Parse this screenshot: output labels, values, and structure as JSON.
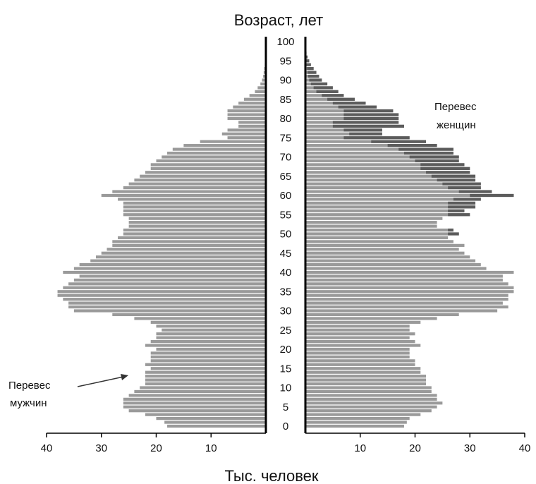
{
  "chart_data": {
    "type": "bar",
    "title": "Возраст, лет",
    "xlabel": "Тыс. человек",
    "ylabel": "",
    "age_ticks": [
      "0",
      "5",
      "10",
      "15",
      "20",
      "25",
      "30",
      "35",
      "40",
      "45",
      "50",
      "55",
      "60",
      "65",
      "70",
      "75",
      "80",
      "85",
      "90",
      "95",
      "100"
    ],
    "x_ticks_left": [
      "40",
      "30",
      "20",
      "10"
    ],
    "x_ticks_right": [
      "10",
      "20",
      "30",
      "40"
    ],
    "xlim": [
      0,
      40
    ],
    "ages": [
      0,
      1,
      2,
      3,
      4,
      5,
      6,
      7,
      8,
      9,
      10,
      11,
      12,
      13,
      14,
      15,
      16,
      17,
      18,
      19,
      20,
      21,
      22,
      23,
      24,
      25,
      26,
      27,
      28,
      29,
      30,
      31,
      32,
      33,
      34,
      35,
      36,
      37,
      38,
      39,
      40,
      41,
      42,
      43,
      44,
      45,
      46,
      47,
      48,
      49,
      50,
      51,
      52,
      53,
      54,
      55,
      56,
      57,
      58,
      59,
      60,
      61,
      62,
      63,
      64,
      65,
      66,
      67,
      68,
      69,
      70,
      71,
      72,
      73,
      74,
      75,
      76,
      77,
      78,
      79,
      80,
      81,
      82,
      83,
      84,
      85,
      86,
      87,
      88,
      89,
      90,
      91,
      92,
      93,
      94,
      95,
      96,
      97,
      98,
      99,
      100
    ],
    "series": [
      {
        "side": "left",
        "values": [
          18,
          18.5,
          20,
          22,
          25,
          26,
          26,
          26,
          25,
          24,
          23,
          22,
          22,
          22,
          22,
          21,
          22,
          21,
          21,
          21,
          20,
          22,
          21,
          20,
          20,
          19,
          20,
          21,
          24,
          28,
          35,
          36,
          36,
          37,
          38,
          38,
          37,
          36,
          35,
          34,
          37,
          35,
          34,
          32,
          31,
          30,
          29,
          28,
          28,
          27,
          26,
          26,
          25,
          25,
          25,
          26,
          26,
          26,
          26,
          27,
          30,
          28,
          26,
          25,
          24,
          23,
          22,
          21,
          21,
          20,
          19,
          18,
          17,
          15,
          12,
          7,
          8,
          7,
          5,
          5,
          7,
          7,
          7,
          6,
          5,
          4,
          3,
          2,
          1.5,
          1,
          0.7,
          0.5,
          0.4,
          0.3,
          0.2,
          0.15,
          0.1,
          0.05,
          0.05,
          0.03,
          0.02
        ]
      },
      {
        "side": "right",
        "values": [
          18,
          18.5,
          19,
          21,
          23,
          24,
          25,
          24,
          24,
          23,
          23,
          22,
          22,
          22,
          21,
          21,
          20,
          20,
          19,
          19,
          19,
          21,
          20,
          19,
          20,
          19,
          19,
          21,
          24,
          28,
          35,
          37,
          36,
          37,
          37,
          38,
          38,
          37,
          36,
          36,
          38,
          33,
          32,
          31,
          30,
          29,
          28,
          29,
          27,
          26,
          28,
          27,
          24,
          24,
          25,
          30,
          29,
          31,
          31,
          32,
          38,
          34,
          32,
          32,
          31,
          31,
          30,
          30,
          29,
          28,
          28,
          27,
          27,
          24,
          22,
          19,
          14,
          14,
          18,
          17,
          17,
          17,
          16,
          13,
          11,
          9,
          7,
          6,
          5,
          4,
          3,
          2.5,
          2,
          1.5,
          1,
          0.7,
          0.4,
          0.2,
          0.1,
          0.05,
          0.02
        ]
      },
      {
        "side": "right",
        "name": "excess",
        "values": [
          18,
          18.5,
          19,
          21,
          23,
          24,
          25,
          24,
          24,
          23,
          23,
          22,
          22,
          22,
          21,
          21,
          20,
          20,
          19,
          19,
          19,
          21,
          20,
          19,
          20,
          19,
          19,
          21,
          24,
          28,
          35,
          37,
          36,
          37,
          37,
          38,
          38,
          37,
          36,
          36,
          38,
          33,
          32,
          31,
          30,
          29,
          28,
          29,
          27,
          26,
          26,
          26,
          24,
          24,
          25,
          26,
          26,
          26,
          26,
          27,
          30,
          28,
          26,
          25,
          24,
          23,
          22,
          21,
          21,
          20,
          19,
          18,
          17,
          15,
          12,
          7,
          8,
          7,
          5,
          5,
          7,
          7,
          7,
          6,
          5,
          4,
          3,
          2,
          1.5,
          1,
          0.7,
          0.5,
          0.4,
          0.3,
          0.2,
          0.15,
          0.1,
          0.05,
          0.05,
          0.03,
          0.02
        ]
      }
    ],
    "annotations": [
      {
        "lines": [
          "Перевес",
          "женщин"
        ]
      },
      {
        "lines": [
          "Перевес",
          "мужчин"
        ]
      }
    ]
  }
}
